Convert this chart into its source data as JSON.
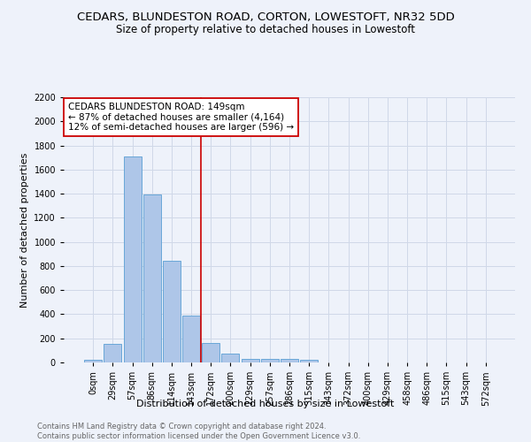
{
  "title": "CEDARS, BLUNDESTON ROAD, CORTON, LOWESTOFT, NR32 5DD",
  "subtitle": "Size of property relative to detached houses in Lowestoft",
  "xlabel": "Distribution of detached houses by size in Lowestoft",
  "ylabel": "Number of detached properties",
  "bar_values": [
    20,
    155,
    1710,
    1390,
    840,
    390,
    165,
    70,
    30,
    28,
    28,
    20,
    0,
    0,
    0,
    0,
    0,
    0,
    0,
    0,
    0
  ],
  "bar_labels": [
    "0sqm",
    "29sqm",
    "57sqm",
    "86sqm",
    "114sqm",
    "143sqm",
    "172sqm",
    "200sqm",
    "229sqm",
    "257sqm",
    "286sqm",
    "315sqm",
    "343sqm",
    "372sqm",
    "400sqm",
    "429sqm",
    "458sqm",
    "486sqm",
    "515sqm",
    "543sqm",
    "572sqm"
  ],
  "bar_color": "#aec6e8",
  "bar_edge_color": "#5a9fd4",
  "grid_color": "#d0d8e8",
  "background_color": "#eef2fa",
  "vline_x": 5.5,
  "vline_color": "#cc0000",
  "annotation_text": "CEDARS BLUNDESTON ROAD: 149sqm\n← 87% of detached houses are smaller (4,164)\n12% of semi-detached houses are larger (596) →",
  "annotation_box_color": "#ffffff",
  "annotation_box_edge": "#cc0000",
  "ylim": [
    0,
    2200
  ],
  "yticks": [
    0,
    200,
    400,
    600,
    800,
    1000,
    1200,
    1400,
    1600,
    1800,
    2000,
    2200
  ],
  "footer": "Contains HM Land Registry data © Crown copyright and database right 2024.\nContains public sector information licensed under the Open Government Licence v3.0.",
  "title_fontsize": 9.5,
  "subtitle_fontsize": 8.5,
  "axis_label_fontsize": 8,
  "tick_fontsize": 7,
  "footer_fontsize": 6,
  "annotation_fontsize": 7.5
}
